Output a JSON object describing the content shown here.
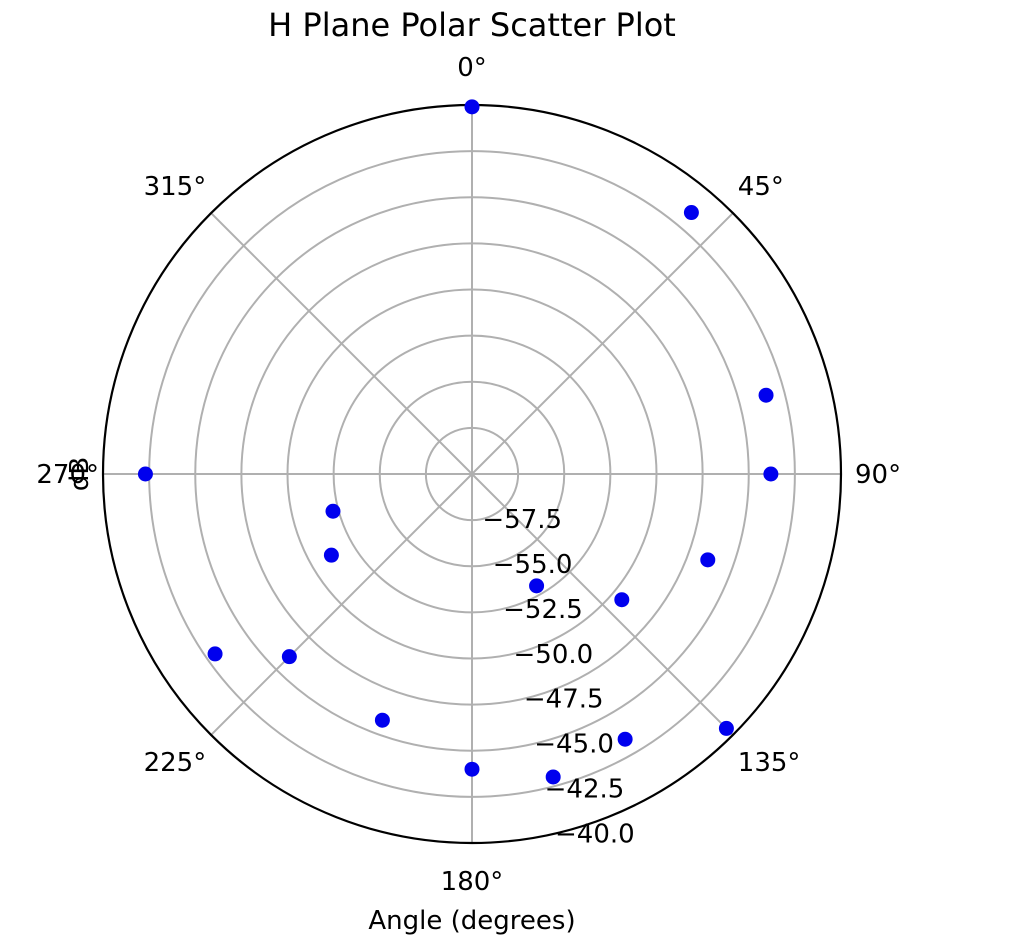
{
  "chart_data": {
    "type": "scatter",
    "projection": "polar",
    "title": "H Plane Polar Scatter Plot",
    "xlabel": "Angle (degrees)",
    "ylabel": "dB",
    "theta_zero_location": "N",
    "theta_direction": "clockwise",
    "theta_ticks": [
      0,
      45,
      90,
      135,
      180,
      225,
      270,
      315
    ],
    "theta_tick_labels": [
      "0°",
      "45°",
      "90°",
      "135°",
      "180°",
      "225°",
      "270°",
      "315°"
    ],
    "r_range": [
      -60,
      -40
    ],
    "r_ticks": [
      -57.5,
      -55.0,
      -52.5,
      -50.0,
      -47.5,
      -45.0,
      -42.5,
      -40.0
    ],
    "r_tick_labels": [
      "−57.5",
      "−55.0",
      "−52.5",
      "−50.0",
      "−47.5",
      "−45.0",
      "−42.5",
      "−40.0"
    ],
    "grid": true,
    "marker_color": "#0000ee",
    "points": [
      {
        "theta": 0,
        "r": -40.1
      },
      {
        "theta": 40,
        "r": -41.5
      },
      {
        "theta": 75,
        "r": -43.5
      },
      {
        "theta": 90,
        "r": -43.8
      },
      {
        "theta": 110,
        "r": -46.4
      },
      {
        "theta": 130,
        "r": -49.4
      },
      {
        "theta": 135,
        "r": -40.5
      },
      {
        "theta": 150,
        "r": -53.0
      },
      {
        "theta": 150,
        "r": -43.4
      },
      {
        "theta": 165,
        "r": -43.0
      },
      {
        "theta": 180,
        "r": -44.0
      },
      {
        "theta": 200,
        "r": -45.8
      },
      {
        "theta": 225,
        "r": -46.0
      },
      {
        "theta": 235,
        "r": -43.0
      },
      {
        "theta": 240,
        "r": -51.2
      },
      {
        "theta": 255,
        "r": -52.2
      },
      {
        "theta": 270,
        "r": -42.3
      }
    ]
  }
}
